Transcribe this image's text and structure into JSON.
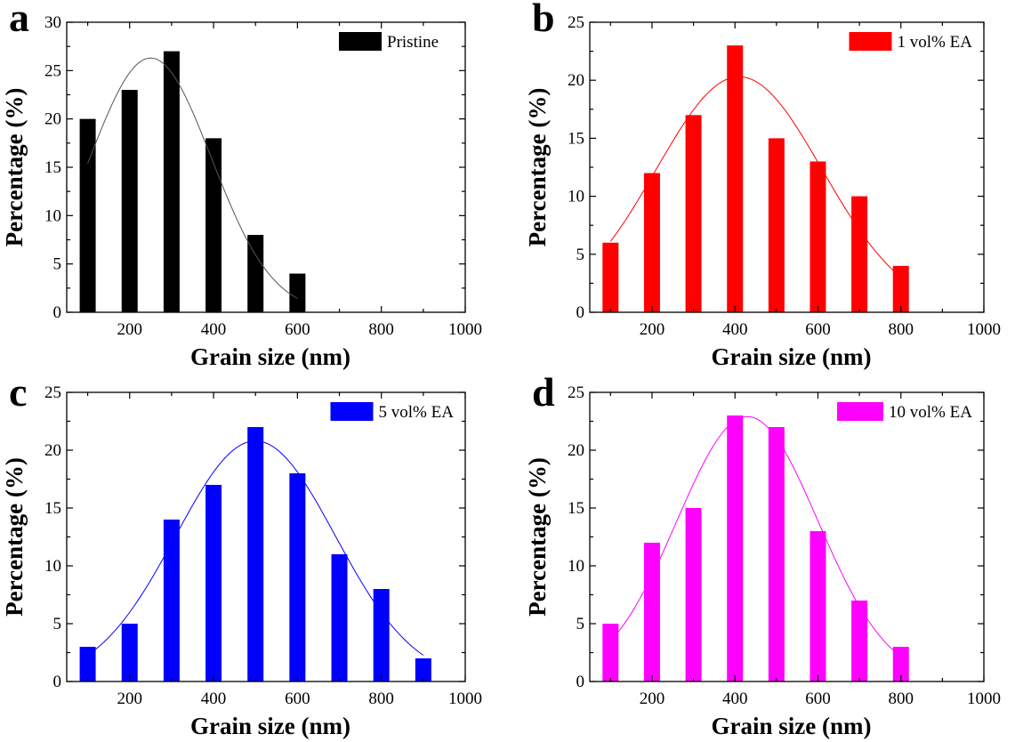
{
  "figure": {
    "panels": [
      "a",
      "b",
      "c",
      "d"
    ]
  },
  "chart_data": [
    {
      "panel": "a",
      "type": "bar",
      "xlabel": "Grain size (nm)",
      "ylabel": "Percentage (%)",
      "xlim": [
        50,
        1000
      ],
      "ylim": [
        0,
        30
      ],
      "xticks": [
        200,
        400,
        600,
        800,
        1000
      ],
      "yticks": [
        0,
        5,
        10,
        15,
        20,
        25,
        30
      ],
      "grid": false,
      "legend_position": "top-right",
      "color": "#000000",
      "series": [
        {
          "name": "Pristine",
          "x": [
            100,
            200,
            300,
            400,
            500,
            600
          ],
          "values": [
            20,
            23,
            27,
            18,
            8,
            4
          ]
        }
      ],
      "fit": {
        "x_range": [
          100,
          600
        ],
        "peak_x": 250,
        "peak_y": 26.3,
        "sigma": 145
      }
    },
    {
      "panel": "b",
      "type": "bar",
      "xlabel": "Grain size (nm)",
      "ylabel": "Percentage (%)",
      "xlim": [
        50,
        1000
      ],
      "ylim": [
        0,
        25
      ],
      "xticks": [
        200,
        400,
        600,
        800,
        1000
      ],
      "yticks": [
        0,
        5,
        10,
        15,
        20,
        25
      ],
      "grid": false,
      "legend_position": "top-right",
      "color": "#ff0000",
      "series": [
        {
          "name": "1 vol% EA",
          "x": [
            100,
            200,
            300,
            400,
            500,
            600,
            700,
            800
          ],
          "values": [
            6,
            12,
            17,
            23,
            15,
            13,
            10,
            4
          ]
        }
      ],
      "fit": {
        "x_range": [
          100,
          800
        ],
        "peak_x": 410,
        "peak_y": 20.3,
        "sigma": 200
      }
    },
    {
      "panel": "c",
      "type": "bar",
      "xlabel": "Grain size (nm)",
      "ylabel": "Percentage (%)",
      "xlim": [
        50,
        1000
      ],
      "ylim": [
        0,
        25
      ],
      "xticks": [
        200,
        400,
        600,
        800,
        1000
      ],
      "yticks": [
        0,
        5,
        10,
        15,
        20,
        25
      ],
      "grid": false,
      "legend_position": "top-right",
      "color": "#0000ff",
      "series": [
        {
          "name": "5 vol% EA",
          "x": [
            100,
            200,
            300,
            400,
            500,
            600,
            700,
            800,
            900
          ],
          "values": [
            3,
            5,
            14,
            17,
            22,
            18,
            11,
            8,
            2
          ]
        }
      ],
      "fit": {
        "x_range": [
          100,
          900
        ],
        "peak_x": 500,
        "peak_y": 20.8,
        "sigma": 190
      }
    },
    {
      "panel": "d",
      "type": "bar",
      "xlabel": "Grain size (nm)",
      "ylabel": "Percentage (%)",
      "xlim": [
        50,
        1000
      ],
      "ylim": [
        0,
        25
      ],
      "xticks": [
        200,
        400,
        600,
        800,
        1000
      ],
      "yticks": [
        0,
        5,
        10,
        15,
        20,
        25
      ],
      "grid": false,
      "legend_position": "top-right",
      "color": "#ff00ff",
      "series": [
        {
          "name": "10 vol% EA",
          "x": [
            100,
            200,
            300,
            400,
            500,
            600,
            700,
            800
          ],
          "values": [
            5,
            12,
            15,
            23,
            22,
            13,
            7,
            3
          ]
        }
      ],
      "fit": {
        "x_range": [
          100,
          800
        ],
        "peak_x": 430,
        "peak_y": 22.9,
        "sigma": 170
      }
    }
  ]
}
